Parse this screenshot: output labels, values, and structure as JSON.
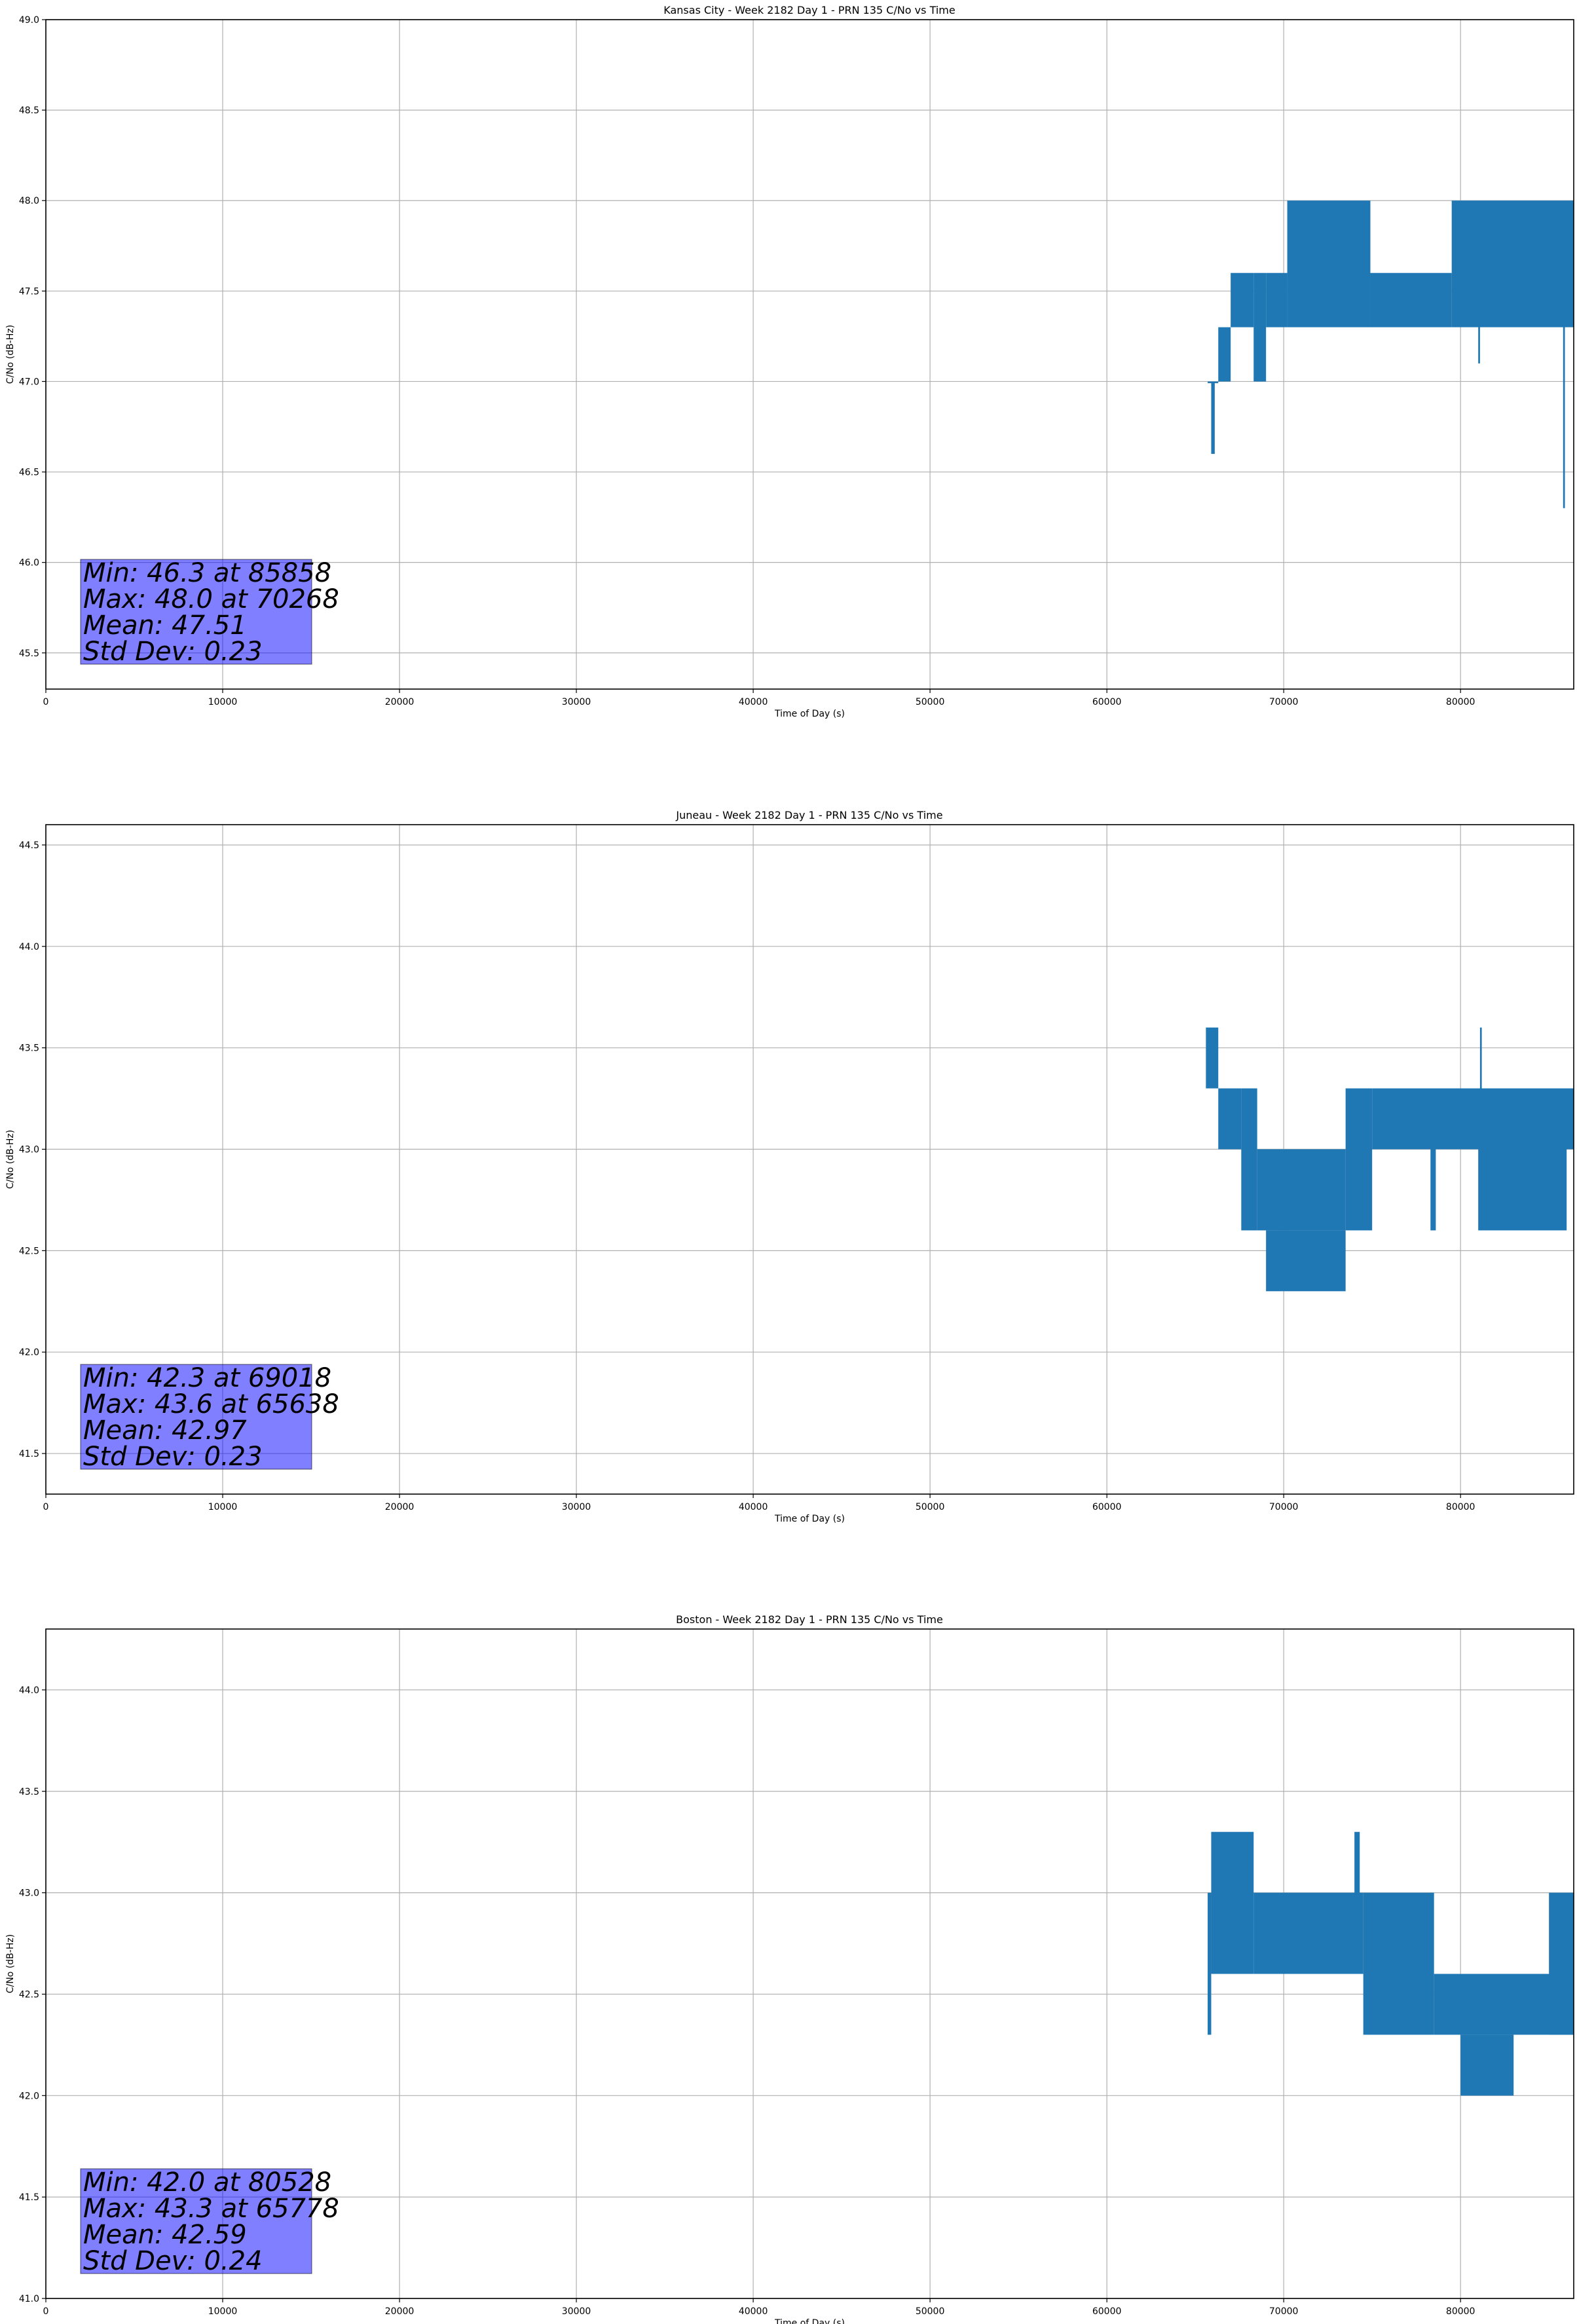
{
  "colors": {
    "series": "#1f77b4",
    "stats_box": "#8080ff",
    "grid": "#b0b0b0"
  },
  "chart_data": [
    {
      "type": "line",
      "title": "Kansas City - Week 2182 Day 1 - PRN 135 C/No vs Time",
      "xlabel": "Time of Day (s)",
      "ylabel": "C/No (dB-Hz)",
      "xlim": [
        0,
        86400
      ],
      "ylim": [
        45.3,
        49.0
      ],
      "xticks": [
        0,
        10000,
        20000,
        30000,
        40000,
        50000,
        60000,
        70000,
        80000
      ],
      "yticks": [
        45.5,
        46.0,
        46.5,
        47.0,
        47.5,
        48.0,
        48.5,
        49.0
      ],
      "ytick_labels": [
        "45.5",
        "46.0",
        "46.5",
        "47.0",
        "47.5",
        "48.0",
        "48.5",
        "49.0"
      ],
      "grid": true,
      "series": [
        {
          "segments": [
            {
              "x": [
                65700,
                66300
              ],
              "min": 47.0,
              "max": 47.0
            },
            {
              "x": [
                65900,
                66100
              ],
              "min": 46.6,
              "max": 47.0
            },
            {
              "x": [
                66300,
                67000
              ],
              "min": 47.0,
              "max": 47.3
            },
            {
              "x": [
                67000,
                68300
              ],
              "min": 47.3,
              "max": 47.6
            },
            {
              "x": [
                68300,
                69000
              ],
              "min": 47.0,
              "max": 47.6
            },
            {
              "x": [
                69000,
                70200
              ],
              "min": 47.3,
              "max": 47.6
            },
            {
              "x": [
                70200,
                74900
              ],
              "min": 47.3,
              "max": 48.0
            },
            {
              "x": [
                74900,
                79500
              ],
              "min": 47.3,
              "max": 47.6
            },
            {
              "x": [
                79500,
                86400
              ],
              "min": 47.3,
              "max": 48.0
            },
            {
              "x": [
                81000,
                81100
              ],
              "min": 47.1,
              "max": 47.6
            },
            {
              "x": [
                85800,
                85900
              ],
              "min": 46.3,
              "max": 47.6
            }
          ]
        }
      ],
      "stats": {
        "lines": [
          "Min: 46.3 at 85858",
          "Max: 48.0 at 70268",
          "Mean: 47.51",
          "Std Dev: 0.23"
        ]
      }
    },
    {
      "type": "line",
      "title": "Juneau - Week 2182 Day 1 - PRN 135 C/No vs Time",
      "xlabel": "Time of Day (s)",
      "ylabel": "C/No (dB-Hz)",
      "xlim": [
        0,
        86400
      ],
      "ylim": [
        41.3,
        44.6
      ],
      "xticks": [
        0,
        10000,
        20000,
        30000,
        40000,
        50000,
        60000,
        70000,
        80000
      ],
      "yticks": [
        41.5,
        42.0,
        42.5,
        43.0,
        43.5,
        44.0,
        44.5
      ],
      "ytick_labels": [
        "41.5",
        "42.0",
        "42.5",
        "43.0",
        "43.5",
        "44.0",
        "44.5"
      ],
      "grid": true,
      "series": [
        {
          "segments": [
            {
              "x": [
                65600,
                66300
              ],
              "min": 43.3,
              "max": 43.6
            },
            {
              "x": [
                66300,
                67600
              ],
              "min": 43.0,
              "max": 43.3
            },
            {
              "x": [
                67600,
                68500
              ],
              "min": 42.6,
              "max": 43.3
            },
            {
              "x": [
                68500,
                73500
              ],
              "min": 42.6,
              "max": 43.0
            },
            {
              "x": [
                69000,
                73500
              ],
              "min": 42.3,
              "max": 42.6
            },
            {
              "x": [
                73500,
                75000
              ],
              "min": 42.6,
              "max": 43.3
            },
            {
              "x": [
                75000,
                86400
              ],
              "min": 43.0,
              "max": 43.3
            },
            {
              "x": [
                78300,
                78600
              ],
              "min": 42.6,
              "max": 43.0
            },
            {
              "x": [
                81000,
                86000
              ],
              "min": 42.6,
              "max": 43.0
            },
            {
              "x": [
                81100,
                81200
              ],
              "min": 43.0,
              "max": 43.6
            }
          ]
        }
      ],
      "stats": {
        "lines": [
          "Min: 42.3 at 69018",
          "Max: 43.6 at 65638",
          "Mean: 42.97",
          "Std Dev: 0.23"
        ]
      }
    },
    {
      "type": "line",
      "title": "Boston - Week 2182 Day 1 - PRN 135 C/No vs Time",
      "xlabel": "Time of Day (s)",
      "ylabel": "C/No (dB-Hz)",
      "xlim": [
        0,
        86400
      ],
      "ylim": [
        41.0,
        44.3
      ],
      "xticks": [
        0,
        10000,
        20000,
        30000,
        40000,
        50000,
        60000,
        70000,
        80000
      ],
      "yticks": [
        41.0,
        41.5,
        42.0,
        42.5,
        43.0,
        43.5,
        44.0
      ],
      "ytick_labels": [
        "41.0",
        "41.5",
        "42.0",
        "42.5",
        "43.0",
        "43.5",
        "44.0"
      ],
      "grid": true,
      "series": [
        {
          "segments": [
            {
              "x": [
                65700,
                65900
              ],
              "min": 42.3,
              "max": 43.0
            },
            {
              "x": [
                65900,
                68300
              ],
              "min": 42.6,
              "max": 43.3
            },
            {
              "x": [
                68300,
                74500
              ],
              "min": 42.6,
              "max": 43.0
            },
            {
              "x": [
                74000,
                74300
              ],
              "min": 42.6,
              "max": 43.3
            },
            {
              "x": [
                74500,
                78500
              ],
              "min": 42.3,
              "max": 43.0
            },
            {
              "x": [
                78500,
                86400
              ],
              "min": 42.3,
              "max": 42.6
            },
            {
              "x": [
                80000,
                83000
              ],
              "min": 42.0,
              "max": 42.3
            },
            {
              "x": [
                85000,
                86400
              ],
              "min": 42.3,
              "max": 43.0
            }
          ]
        }
      ],
      "stats": {
        "lines": [
          "Min: 42.0 at 80528",
          "Max: 43.3 at 65778",
          "Mean: 42.59",
          "Std Dev: 0.24"
        ]
      }
    }
  ]
}
